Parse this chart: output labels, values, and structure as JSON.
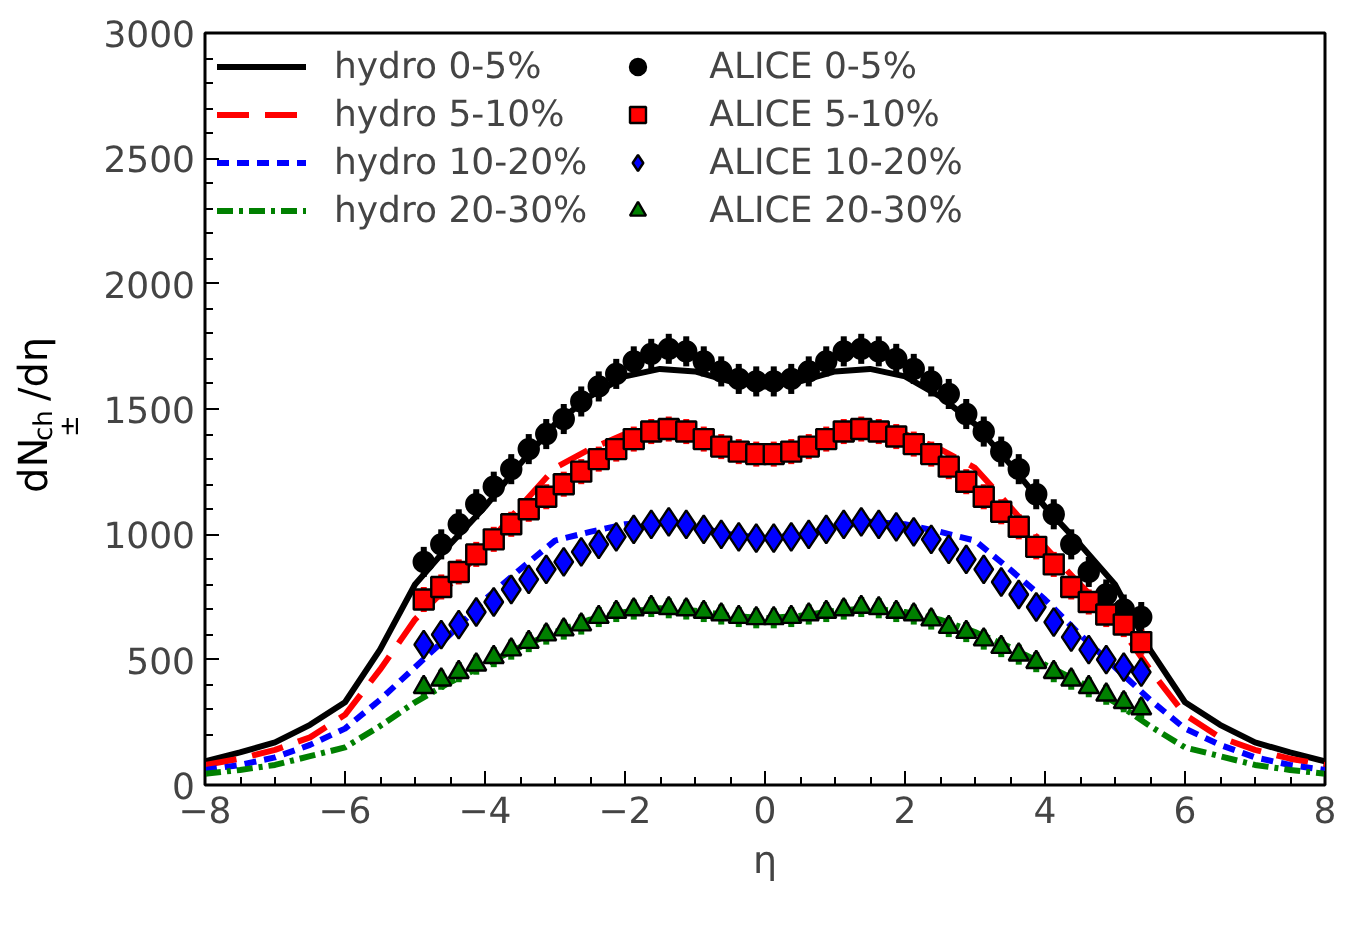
{
  "chart_data": {
    "type": "line",
    "xlabel": "η",
    "ylabel": "dN$_{ch}$$^{±}$/dη",
    "xlim": [
      -8,
      8
    ],
    "ylim": [
      0,
      3000
    ],
    "xticks": [
      -8,
      -6,
      -4,
      -2,
      0,
      2,
      4,
      6,
      8
    ],
    "yticks": [
      0,
      500,
      1000,
      1500,
      2000,
      2500,
      3000
    ],
    "grid": false,
    "legend": "top left",
    "series": [
      {
        "name": "hydro 0-5%",
        "color": "#000000",
        "line_style": "solid",
        "x": [
          -8,
          -7.5,
          -7,
          -6.5,
          -6,
          -5.5,
          -5,
          -4.5,
          -4,
          -3.5,
          -3,
          -2.5,
          -2,
          -1.5,
          -1,
          -0.5,
          0,
          0.5,
          1,
          1.5,
          2,
          2.5,
          3,
          3.5,
          4,
          4.5,
          5,
          5.5,
          6,
          6.5,
          7,
          7.5,
          8
        ],
        "values": [
          94,
          130,
          170,
          240,
          330,
          540,
          800,
          960,
          1110,
          1280,
          1440,
          1550,
          1630,
          1660,
          1650,
          1610,
          1590,
          1610,
          1650,
          1660,
          1630,
          1550,
          1440,
          1280,
          1110,
          960,
          800,
          540,
          330,
          240,
          170,
          130,
          94
        ]
      },
      {
        "name": "hydro 5-10%",
        "color": "#ff0000",
        "line_style": "dashed",
        "x": [
          -8,
          -7.5,
          -7,
          -6.5,
          -6,
          -5.5,
          -5,
          -4.5,
          -4,
          -3.5,
          -3,
          -2.5,
          -2,
          -1.5,
          -1,
          -0.5,
          0,
          0.5,
          1,
          1.5,
          2,
          2.5,
          3,
          3.5,
          4,
          4.5,
          5,
          5.5,
          6,
          6.5,
          7,
          7.5,
          8
        ],
        "values": [
          80,
          105,
          140,
          190,
          280,
          460,
          660,
          800,
          950,
          1110,
          1265,
          1340,
          1400,
          1420,
          1390,
          1340,
          1320,
          1340,
          1390,
          1420,
          1400,
          1340,
          1265,
          1110,
          950,
          800,
          660,
          460,
          280,
          190,
          140,
          105,
          80
        ]
      },
      {
        "name": "hydro 10-20%",
        "color": "#0000ff",
        "line_style": "dotted",
        "x": [
          -8,
          -7.5,
          -7,
          -6.5,
          -6,
          -5.5,
          -5,
          -4.5,
          -4,
          -3.5,
          -3,
          -2.5,
          -2,
          -1.5,
          -1,
          -0.5,
          0,
          0.5,
          1,
          1.5,
          2,
          2.5,
          3,
          3.5,
          4,
          4.5,
          5,
          5.5,
          6,
          6.5,
          7,
          7.5,
          8
        ],
        "values": [
          60,
          80,
          110,
          160,
          225,
          340,
          470,
          600,
          740,
          860,
          975,
          1010,
          1040,
          1050,
          1030,
          1000,
          985,
          1000,
          1030,
          1050,
          1040,
          1010,
          975,
          860,
          740,
          600,
          470,
          340,
          225,
          160,
          110,
          80,
          60
        ]
      },
      {
        "name": "hydro 20-30%",
        "color": "#008000",
        "line_style": "dashdot",
        "x": [
          -8,
          -7.5,
          -7,
          -6.5,
          -6,
          -5.5,
          -5,
          -4.5,
          -4,
          -3.5,
          -3,
          -2.5,
          -2,
          -1.5,
          -1,
          -0.5,
          0,
          0.5,
          1,
          1.5,
          2,
          2.5,
          3,
          3.5,
          4,
          4.5,
          5,
          5.5,
          6,
          6.5,
          7,
          7.5,
          8
        ],
        "values": [
          45,
          60,
          80,
          115,
          150,
          235,
          330,
          410,
          480,
          550,
          610,
          660,
          690,
          705,
          695,
          675,
          665,
          675,
          695,
          705,
          690,
          660,
          610,
          550,
          480,
          410,
          330,
          235,
          150,
          115,
          80,
          60,
          45
        ]
      },
      {
        "name": "ALICE 0-5%",
        "type": "scatter",
        "marker": "circle",
        "color": "#000000",
        "x": [
          -4.875,
          -4.625,
          -4.375,
          -4.125,
          -3.875,
          -3.625,
          -3.375,
          -3.125,
          -2.875,
          -2.625,
          -2.375,
          -2.125,
          -1.875,
          -1.625,
          -1.375,
          -1.125,
          -0.875,
          -0.625,
          -0.375,
          -0.125,
          0.125,
          0.375,
          0.625,
          0.875,
          1.125,
          1.375,
          1.625,
          1.875,
          2.125,
          2.375,
          2.625,
          2.875,
          3.125,
          3.375,
          3.625,
          3.875,
          4.125,
          4.375,
          4.625,
          4.875,
          5.125,
          5.375
        ],
        "values": [
          890,
          960,
          1040,
          1120,
          1190,
          1260,
          1340,
          1400,
          1460,
          1530,
          1590,
          1640,
          1690,
          1720,
          1740,
          1730,
          1690,
          1650,
          1620,
          1610,
          1610,
          1620,
          1650,
          1690,
          1730,
          1740,
          1730,
          1700,
          1660,
          1610,
          1560,
          1480,
          1410,
          1330,
          1260,
          1160,
          1080,
          960,
          850,
          760,
          700,
          670
        ],
        "errors": [
          50,
          50,
          50,
          50,
          50,
          50,
          50,
          50,
          50,
          50,
          50,
          50,
          50,
          50,
          50,
          50,
          50,
          50,
          50,
          50,
          50,
          50,
          50,
          50,
          50,
          50,
          50,
          50,
          50,
          50,
          50,
          50,
          50,
          50,
          50,
          50,
          50,
          50,
          50,
          50,
          50,
          50
        ]
      },
      {
        "name": "ALICE 5-10%",
        "type": "scatter",
        "marker": "square",
        "color": "#ff0000",
        "x": [
          -4.875,
          -4.625,
          -4.375,
          -4.125,
          -3.875,
          -3.625,
          -3.375,
          -3.125,
          -2.875,
          -2.625,
          -2.375,
          -2.125,
          -1.875,
          -1.625,
          -1.375,
          -1.125,
          -0.875,
          -0.625,
          -0.375,
          -0.125,
          0.125,
          0.375,
          0.625,
          0.875,
          1.125,
          1.375,
          1.625,
          1.875,
          2.125,
          2.375,
          2.625,
          2.875,
          3.125,
          3.375,
          3.625,
          3.875,
          4.125,
          4.375,
          4.625,
          4.875,
          5.125,
          5.375
        ],
        "values": [
          740,
          790,
          850,
          920,
          980,
          1040,
          1100,
          1150,
          1200,
          1250,
          1300,
          1340,
          1380,
          1410,
          1420,
          1410,
          1380,
          1350,
          1330,
          1320,
          1320,
          1330,
          1350,
          1380,
          1410,
          1420,
          1410,
          1390,
          1360,
          1320,
          1270,
          1210,
          1150,
          1090,
          1030,
          950,
          880,
          790,
          730,
          680,
          640,
          570
        ],
        "errors": [
          40,
          40,
          40,
          40,
          40,
          40,
          40,
          40,
          40,
          40,
          40,
          40,
          40,
          40,
          40,
          40,
          40,
          40,
          40,
          40,
          40,
          40,
          40,
          40,
          40,
          40,
          40,
          40,
          40,
          40,
          40,
          40,
          40,
          40,
          40,
          40,
          40,
          40,
          40,
          40,
          40,
          40
        ]
      },
      {
        "name": "ALICE 10-20%",
        "type": "scatter",
        "marker": "diamond",
        "color": "#0000ff",
        "x": [
          -4.875,
          -4.625,
          -4.375,
          -4.125,
          -3.875,
          -3.625,
          -3.375,
          -3.125,
          -2.875,
          -2.625,
          -2.375,
          -2.125,
          -1.875,
          -1.625,
          -1.375,
          -1.125,
          -0.875,
          -0.625,
          -0.375,
          -0.125,
          0.125,
          0.375,
          0.625,
          0.875,
          1.125,
          1.375,
          1.625,
          1.875,
          2.125,
          2.375,
          2.625,
          2.875,
          3.125,
          3.375,
          3.625,
          3.875,
          4.125,
          4.375,
          4.625,
          4.875,
          5.125,
          5.375
        ],
        "values": [
          560,
          600,
          640,
          690,
          730,
          780,
          820,
          860,
          890,
          930,
          960,
          990,
          1020,
          1040,
          1050,
          1040,
          1020,
          1000,
          990,
          985,
          985,
          990,
          1000,
          1020,
          1040,
          1050,
          1040,
          1030,
          1010,
          980,
          940,
          900,
          860,
          810,
          760,
          710,
          650,
          590,
          540,
          500,
          470,
          450
        ],
        "errors": [
          35,
          35,
          35,
          35,
          35,
          35,
          35,
          35,
          35,
          35,
          35,
          35,
          35,
          35,
          35,
          35,
          35,
          35,
          35,
          35,
          35,
          35,
          35,
          35,
          35,
          35,
          35,
          35,
          35,
          35,
          35,
          35,
          35,
          35,
          35,
          35,
          35,
          35,
          35,
          35,
          35,
          35
        ]
      },
      {
        "name": "ALICE 20-30%",
        "type": "scatter",
        "marker": "triangle",
        "color": "#008000",
        "x": [
          -4.875,
          -4.625,
          -4.375,
          -4.125,
          -3.875,
          -3.625,
          -3.375,
          -3.125,
          -2.875,
          -2.625,
          -2.375,
          -2.125,
          -1.875,
          -1.625,
          -1.375,
          -1.125,
          -0.875,
          -0.625,
          -0.375,
          -0.125,
          0.125,
          0.375,
          0.625,
          0.875,
          1.125,
          1.375,
          1.625,
          1.875,
          2.125,
          2.375,
          2.625,
          2.875,
          3.125,
          3.375,
          3.625,
          3.875,
          4.125,
          4.375,
          4.625,
          4.875,
          5.125,
          5.375
        ],
        "values": [
          390,
          420,
          450,
          480,
          510,
          540,
          570,
          600,
          620,
          640,
          670,
          690,
          700,
          710,
          705,
          700,
          690,
          680,
          670,
          665,
          665,
          670,
          680,
          690,
          700,
          710,
          705,
          690,
          680,
          660,
          630,
          610,
          580,
          550,
          520,
          490,
          450,
          420,
          390,
          360,
          330,
          305
        ],
        "errors": [
          30,
          30,
          30,
          30,
          30,
          30,
          30,
          30,
          30,
          30,
          30,
          30,
          30,
          30,
          30,
          30,
          30,
          30,
          30,
          30,
          30,
          30,
          30,
          30,
          30,
          30,
          30,
          30,
          30,
          30,
          30,
          30,
          30,
          30,
          30,
          30,
          30,
          30,
          30,
          30,
          30,
          30
        ]
      }
    ]
  }
}
